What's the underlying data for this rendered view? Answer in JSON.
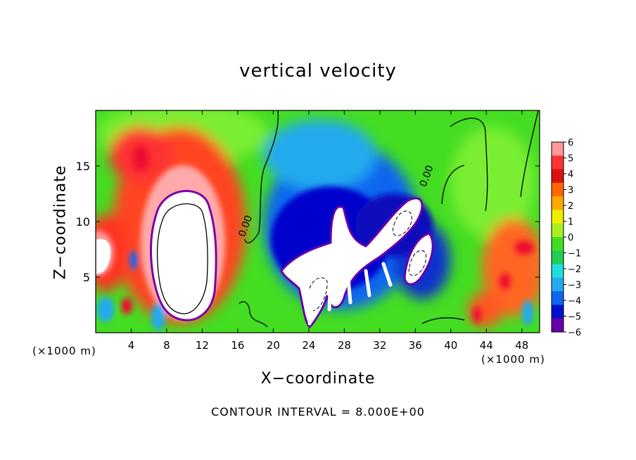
{
  "chart_data": {
    "type": "heatmap",
    "title": "vertical velocity",
    "xlabel": "X−coordinate",
    "ylabel": "Z−coordinate",
    "x_unit": "(×1000 m)",
    "footer": "CONTOUR INTERVAL = 8.000E+00",
    "xlim": [
      0,
      50
    ],
    "ylim": [
      0,
      20
    ],
    "xticks": [
      4,
      8,
      12,
      16,
      20,
      24,
      28,
      32,
      36,
      40,
      44,
      48
    ],
    "yticks": [
      5,
      10,
      15
    ],
    "contour_labels": [
      {
        "x": 17.2,
        "y": 9.5,
        "text": "0.00"
      },
      {
        "x": 37.6,
        "y": 14.0,
        "text": "0.00"
      }
    ],
    "colorbar": {
      "ticks": [
        "6",
        "5",
        "4",
        "3",
        "2",
        "1",
        "0",
        "−1",
        "−2",
        "−3",
        "−4",
        "−5",
        "−6"
      ],
      "range": [
        -6,
        6
      ],
      "saturated_above_color": "#ffffff",
      "saturated_below_color": "#ffffff"
    },
    "features": [
      {
        "x": 9.5,
        "z": 7.0,
        "w": 10,
        "kind": "updraft core"
      },
      {
        "x": 28.0,
        "z": 7.0,
        "w": -10,
        "kind": "downdraft core"
      },
      {
        "x": 34.5,
        "z": 10.0,
        "w": -9,
        "kind": "downdraft core"
      },
      {
        "x": 36.5,
        "z": 6.5,
        "w": -9,
        "kind": "downdraft core"
      },
      {
        "x": 1.0,
        "z": 7.0,
        "w": 6,
        "kind": "updraft"
      },
      {
        "x": 47.5,
        "z": 7.0,
        "w": 4,
        "kind": "updraft"
      }
    ]
  }
}
